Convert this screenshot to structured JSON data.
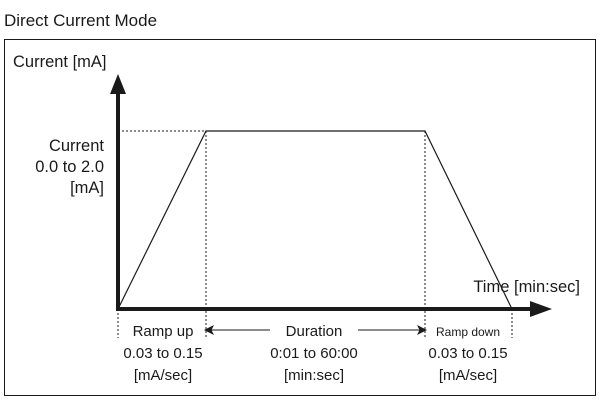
{
  "title": "Direct Current Mode",
  "y_axis": {
    "label": "Current [mA]"
  },
  "x_axis": {
    "label": "Time [min:sec]"
  },
  "current_range": {
    "line1": "Current",
    "line2": "0.0 to 2.0",
    "line3": "[mA]"
  },
  "ramp_up": {
    "label": "Ramp up",
    "range": "0.03 to 0.15",
    "unit": "[mA/sec]"
  },
  "duration": {
    "label": "Duration",
    "range": "0:01 to 60:00",
    "unit": "[min:sec]"
  },
  "ramp_down": {
    "label": "Ramp down",
    "range": "0.03 to 0.15",
    "unit": "[mA/sec]"
  }
}
